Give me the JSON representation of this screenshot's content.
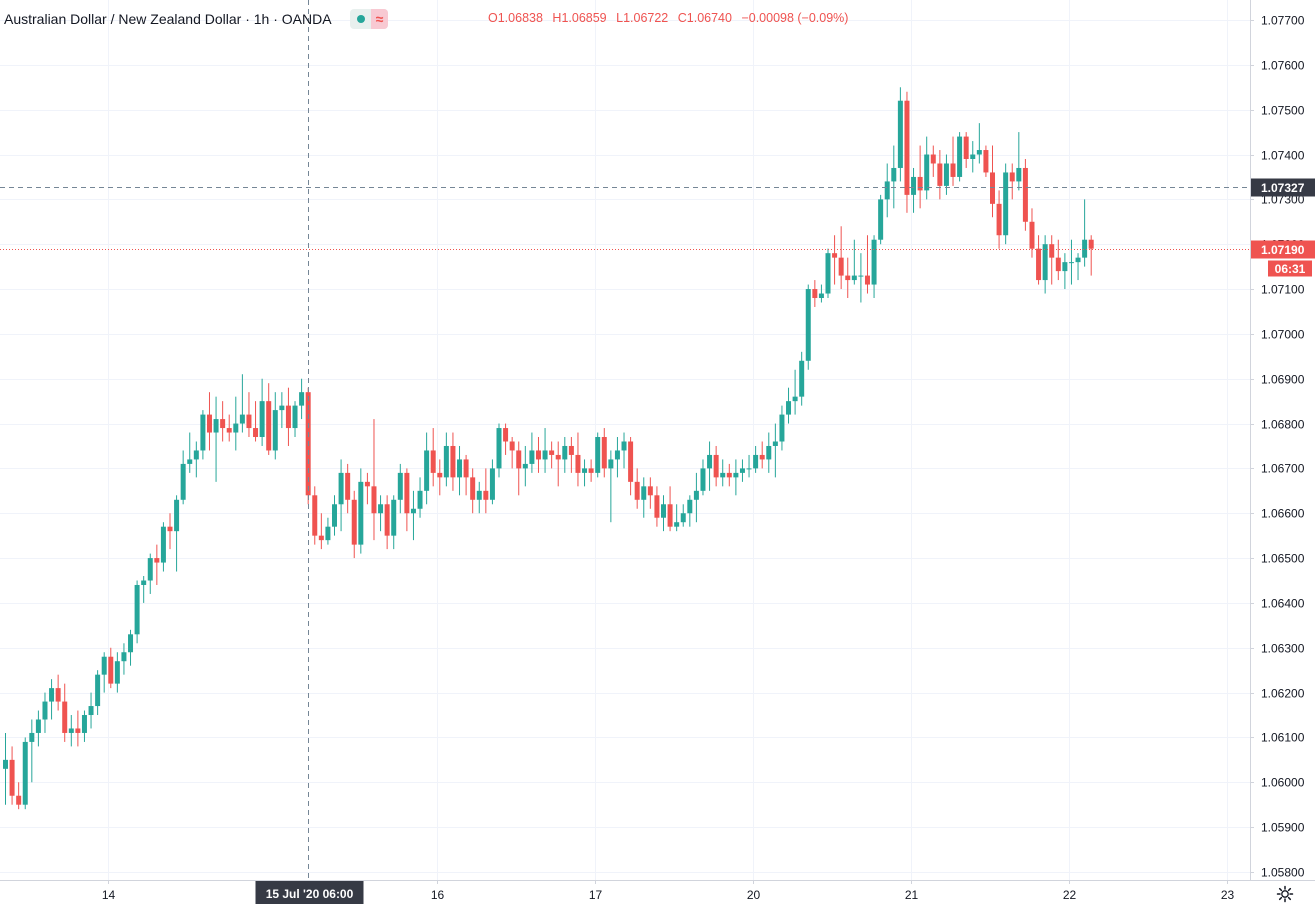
{
  "header": {
    "symbol_title": "Australian Dollar / New Zealand Dollar · 1h · OANDA",
    "ohlc": {
      "open_label": "O",
      "open": "1.06838",
      "high_label": "H",
      "high": "1.06859",
      "low_label": "L",
      "low": "1.06722",
      "close_label": "C",
      "close": "1.06740",
      "change": "−0.00098 (−0.09%)"
    }
  },
  "colors": {
    "up": "#26a69a",
    "down": "#ef5350",
    "grid": "#f0f3fa",
    "text": "#131722"
  },
  "chart_data": {
    "type": "candlestick",
    "ylim": [
      1.0578,
      1.0775
    ],
    "y_ticks": [
      "1.05800",
      "1.05900",
      "1.06000",
      "1.06100",
      "1.06200",
      "1.06300",
      "1.06400",
      "1.06500",
      "1.06600",
      "1.06700",
      "1.06800",
      "1.06900",
      "1.07000",
      "1.07100",
      "1.07200",
      "1.07300",
      "1.07400",
      "1.07500",
      "1.07600",
      "1.07700"
    ],
    "x_ticks": [
      {
        "label": "14",
        "bar": 16
      },
      {
        "label": "16",
        "bar": 66
      },
      {
        "label": "17",
        "bar": 90
      },
      {
        "label": "20",
        "bar": 114
      },
      {
        "label": "21",
        "bar": 138
      },
      {
        "label": "22",
        "bar": 162
      },
      {
        "label": "23",
        "bar": 186
      }
    ],
    "crosshair": {
      "bar": 46,
      "price": 1.07327,
      "x_label": "15 Jul '20   06:00",
      "y_label": "1.07327"
    },
    "last_price": {
      "price": 1.0719,
      "label": "1.07190",
      "countdown": "06:31"
    },
    "candles": [
      [
        1.0603,
        1.0611,
        1.0595,
        1.0605
      ],
      [
        1.0605,
        1.0608,
        1.0595,
        1.0597
      ],
      [
        1.0597,
        1.06,
        1.0594,
        1.0595
      ],
      [
        1.0595,
        1.061,
        1.0594,
        1.0609
      ],
      [
        1.0609,
        1.0614,
        1.06,
        1.0611
      ],
      [
        1.0611,
        1.0616,
        1.0608,
        1.0614
      ],
      [
        1.0614,
        1.062,
        1.0611,
        1.0618
      ],
      [
        1.0618,
        1.0623,
        1.0614,
        1.0621
      ],
      [
        1.0621,
        1.0624,
        1.0616,
        1.0618
      ],
      [
        1.0618,
        1.0622,
        1.0609,
        1.0611
      ],
      [
        1.0611,
        1.0615,
        1.0608,
        1.0612
      ],
      [
        1.0612,
        1.0616,
        1.0608,
        1.0611
      ],
      [
        1.0611,
        1.0616,
        1.0609,
        1.0615
      ],
      [
        1.0615,
        1.062,
        1.0612,
        1.0617
      ],
      [
        1.0617,
        1.0625,
        1.0615,
        1.0624
      ],
      [
        1.0624,
        1.0629,
        1.062,
        1.0628
      ],
      [
        1.0628,
        1.063,
        1.0621,
        1.0622
      ],
      [
        1.0622,
        1.0629,
        1.062,
        1.0627
      ],
      [
        1.0627,
        1.0631,
        1.0624,
        1.0629
      ],
      [
        1.0629,
        1.0634,
        1.0626,
        1.0633
      ],
      [
        1.0633,
        1.0645,
        1.0631,
        1.0644
      ],
      [
        1.0644,
        1.0646,
        1.064,
        1.0645
      ],
      [
        1.0645,
        1.0651,
        1.0642,
        1.065
      ],
      [
        1.065,
        1.0653,
        1.0644,
        1.0649
      ],
      [
        1.0649,
        1.0658,
        1.0647,
        1.0657
      ],
      [
        1.0657,
        1.066,
        1.0652,
        1.0656
      ],
      [
        1.0656,
        1.0664,
        1.0647,
        1.0663
      ],
      [
        1.0663,
        1.0674,
        1.0662,
        1.0671
      ],
      [
        1.0671,
        1.0678,
        1.0669,
        1.0672
      ],
      [
        1.0672,
        1.0676,
        1.0668,
        1.0674
      ],
      [
        1.0674,
        1.0683,
        1.0672,
        1.0682
      ],
      [
        1.0682,
        1.0687,
        1.0674,
        1.0678
      ],
      [
        1.0678,
        1.0686,
        1.0667,
        1.0681
      ],
      [
        1.0681,
        1.0685,
        1.0676,
        1.0679
      ],
      [
        1.0679,
        1.0682,
        1.0676,
        1.0678
      ],
      [
        1.0678,
        1.0686,
        1.0674,
        1.068
      ],
      [
        1.068,
        1.0691,
        1.0678,
        1.0682
      ],
      [
        1.0682,
        1.0687,
        1.0677,
        1.0679
      ],
      [
        1.0679,
        1.0685,
        1.0676,
        1.0677
      ],
      [
        1.0677,
        1.069,
        1.0675,
        1.0685
      ],
      [
        1.0685,
        1.0689,
        1.0673,
        1.0674
      ],
      [
        1.0674,
        1.0687,
        1.0672,
        1.0683
      ],
      [
        1.0683,
        1.0687,
        1.0679,
        1.0684
      ],
      [
        1.0684,
        1.0688,
        1.0675,
        1.0679
      ],
      [
        1.0679,
        1.0685,
        1.0677,
        1.0684
      ],
      [
        1.0684,
        1.069,
        1.0681,
        1.0687
      ],
      [
        1.0687,
        1.0688,
        1.0662,
        1.0664
      ],
      [
        1.0664,
        1.0666,
        1.0653,
        1.0655
      ],
      [
        1.0655,
        1.066,
        1.0652,
        1.0654
      ],
      [
        1.0654,
        1.0659,
        1.0653,
        1.0657
      ],
      [
        1.0657,
        1.0664,
        1.0655,
        1.0662
      ],
      [
        1.0662,
        1.0672,
        1.0656,
        1.0669
      ],
      [
        1.0669,
        1.0671,
        1.066,
        1.0663
      ],
      [
        1.0663,
        1.0665,
        1.065,
        1.0653
      ],
      [
        1.0653,
        1.067,
        1.0651,
        1.0667
      ],
      [
        1.0667,
        1.0669,
        1.0662,
        1.0666
      ],
      [
        1.0666,
        1.0681,
        1.0654,
        1.066
      ],
      [
        1.066,
        1.0664,
        1.0656,
        1.0662
      ],
      [
        1.0662,
        1.0664,
        1.0652,
        1.0655
      ],
      [
        1.0655,
        1.0664,
        1.0652,
        1.0663
      ],
      [
        1.0663,
        1.0671,
        1.066,
        1.0669
      ],
      [
        1.0669,
        1.067,
        1.0656,
        1.066
      ],
      [
        1.066,
        1.0665,
        1.0654,
        1.0661
      ],
      [
        1.0661,
        1.0668,
        1.0659,
        1.0665
      ],
      [
        1.0665,
        1.0678,
        1.0662,
        1.0674
      ],
      [
        1.0674,
        1.0679,
        1.0666,
        1.0669
      ],
      [
        1.0669,
        1.0672,
        1.0664,
        1.0668
      ],
      [
        1.0668,
        1.0678,
        1.0666,
        1.0675
      ],
      [
        1.0675,
        1.0678,
        1.0665,
        1.0668
      ],
      [
        1.0668,
        1.0675,
        1.0664,
        1.0672
      ],
      [
        1.0672,
        1.0673,
        1.0664,
        1.0668
      ],
      [
        1.0668,
        1.067,
        1.066,
        1.0663
      ],
      [
        1.0663,
        1.0667,
        1.066,
        1.0665
      ],
      [
        1.0665,
        1.067,
        1.066,
        1.0663
      ],
      [
        1.0663,
        1.0672,
        1.0662,
        1.067
      ],
      [
        1.067,
        1.068,
        1.0668,
        1.0679
      ],
      [
        1.0679,
        1.068,
        1.0673,
        1.0676
      ],
      [
        1.0676,
        1.0677,
        1.067,
        1.0674
      ],
      [
        1.0674,
        1.0676,
        1.0664,
        1.067
      ],
      [
        1.067,
        1.0675,
        1.0666,
        1.0671
      ],
      [
        1.0671,
        1.0678,
        1.0669,
        1.0674
      ],
      [
        1.0674,
        1.0677,
        1.0669,
        1.0672
      ],
      [
        1.0672,
        1.0679,
        1.0669,
        1.0674
      ],
      [
        1.0674,
        1.0676,
        1.067,
        1.0673
      ],
      [
        1.0673,
        1.0676,
        1.0666,
        1.0672
      ],
      [
        1.0672,
        1.0677,
        1.0669,
        1.0675
      ],
      [
        1.0675,
        1.0677,
        1.0669,
        1.0673
      ],
      [
        1.0673,
        1.0678,
        1.0666,
        1.0669
      ],
      [
        1.0669,
        1.0672,
        1.0666,
        1.067
      ],
      [
        1.067,
        1.0672,
        1.0667,
        1.0669
      ],
      [
        1.0669,
        1.0678,
        1.0668,
        1.0677
      ],
      [
        1.0677,
        1.0679,
        1.0668,
        1.067
      ],
      [
        1.067,
        1.0674,
        1.0658,
        1.0672
      ],
      [
        1.0672,
        1.0677,
        1.0668,
        1.0674
      ],
      [
        1.0674,
        1.0678,
        1.067,
        1.0676
      ],
      [
        1.0676,
        1.0677,
        1.0664,
        1.0667
      ],
      [
        1.0667,
        1.067,
        1.0661,
        1.0663
      ],
      [
        1.0663,
        1.0668,
        1.0659,
        1.0666
      ],
      [
        1.0666,
        1.0668,
        1.0661,
        1.0664
      ],
      [
        1.0664,
        1.0666,
        1.0657,
        1.0659
      ],
      [
        1.0659,
        1.0664,
        1.0656,
        1.0662
      ],
      [
        1.0662,
        1.0666,
        1.0656,
        1.0657
      ],
      [
        1.0657,
        1.0662,
        1.0656,
        1.0658
      ],
      [
        1.0658,
        1.0662,
        1.0657,
        1.066
      ],
      [
        1.066,
        1.0664,
        1.0657,
        1.0663
      ],
      [
        1.0663,
        1.0669,
        1.0658,
        1.0665
      ],
      [
        1.0665,
        1.0672,
        1.0664,
        1.067
      ],
      [
        1.067,
        1.0676,
        1.0665,
        1.0673
      ],
      [
        1.0673,
        1.0675,
        1.0666,
        1.0668
      ],
      [
        1.0668,
        1.0672,
        1.0666,
        1.0669
      ],
      [
        1.0669,
        1.0671,
        1.0666,
        1.0668
      ],
      [
        1.0668,
        1.0672,
        1.0664,
        1.0669
      ],
      [
        1.0669,
        1.0672,
        1.0667,
        1.067
      ],
      [
        1.067,
        1.0673,
        1.0668,
        1.067
      ],
      [
        1.067,
        1.0675,
        1.0669,
        1.0673
      ],
      [
        1.0673,
        1.0676,
        1.067,
        1.0672
      ],
      [
        1.0672,
        1.0678,
        1.0669,
        1.0675
      ],
      [
        1.0675,
        1.068,
        1.0668,
        1.0676
      ],
      [
        1.0676,
        1.0684,
        1.0674,
        1.0682
      ],
      [
        1.0682,
        1.0688,
        1.068,
        1.0685
      ],
      [
        1.0685,
        1.0692,
        1.0682,
        1.0686
      ],
      [
        1.0686,
        1.0696,
        1.0684,
        1.0694
      ],
      [
        1.0694,
        1.0711,
        1.0692,
        1.071
      ],
      [
        1.071,
        1.0712,
        1.0706,
        1.0708
      ],
      [
        1.0708,
        1.0711,
        1.0707,
        1.0709
      ],
      [
        1.0709,
        1.0719,
        1.0708,
        1.0718
      ],
      [
        1.0718,
        1.0722,
        1.0711,
        1.0717
      ],
      [
        1.0717,
        1.0724,
        1.071,
        1.0713
      ],
      [
        1.0713,
        1.0717,
        1.0708,
        1.0712
      ],
      [
        1.0712,
        1.0721,
        1.0711,
        1.0713
      ],
      [
        1.0713,
        1.0718,
        1.0707,
        1.0713
      ],
      [
        1.0713,
        1.0722,
        1.0709,
        1.0711
      ],
      [
        1.0711,
        1.0722,
        1.0708,
        1.0721
      ],
      [
        1.0721,
        1.0731,
        1.072,
        1.073
      ],
      [
        1.073,
        1.0738,
        1.0726,
        1.0734
      ],
      [
        1.0734,
        1.0742,
        1.0728,
        1.0737
      ],
      [
        1.0737,
        1.0755,
        1.0734,
        1.0752
      ],
      [
        1.0752,
        1.0754,
        1.0727,
        1.0731
      ],
      [
        1.0731,
        1.0737,
        1.0727,
        1.0735
      ],
      [
        1.0735,
        1.0742,
        1.0728,
        1.0732
      ],
      [
        1.0732,
        1.0744,
        1.073,
        1.074
      ],
      [
        1.074,
        1.0742,
        1.0735,
        1.0738
      ],
      [
        1.0738,
        1.0741,
        1.073,
        1.0733
      ],
      [
        1.0733,
        1.074,
        1.0731,
        1.0738
      ],
      [
        1.0738,
        1.0744,
        1.0733,
        1.0735
      ],
      [
        1.0735,
        1.0745,
        1.0734,
        1.0744
      ],
      [
        1.0744,
        1.0745,
        1.0737,
        1.0739
      ],
      [
        1.0739,
        1.0743,
        1.0736,
        1.074
      ],
      [
        1.074,
        1.0747,
        1.0738,
        1.0741
      ],
      [
        1.0741,
        1.0742,
        1.0735,
        1.0736
      ],
      [
        1.0736,
        1.0742,
        1.0726,
        1.0729
      ],
      [
        1.0729,
        1.0732,
        1.0719,
        1.0722
      ],
      [
        1.0722,
        1.0738,
        1.072,
        1.0736
      ],
      [
        1.0736,
        1.0738,
        1.073,
        1.0734
      ],
      [
        1.0734,
        1.0745,
        1.0732,
        1.0737
      ],
      [
        1.0737,
        1.0739,
        1.0723,
        1.0725
      ],
      [
        1.0725,
        1.0728,
        1.0717,
        1.0719
      ],
      [
        1.0719,
        1.0722,
        1.0711,
        1.0712
      ],
      [
        1.0712,
        1.0722,
        1.0709,
        1.072
      ],
      [
        1.072,
        1.0722,
        1.0711,
        1.0717
      ],
      [
        1.0717,
        1.0721,
        1.0712,
        1.0714
      ],
      [
        1.0714,
        1.0718,
        1.071,
        1.0716
      ],
      [
        1.0716,
        1.0721,
        1.0711,
        1.0716
      ],
      [
        1.0716,
        1.0718,
        1.0712,
        1.0717
      ],
      [
        1.0717,
        1.073,
        1.0715,
        1.0721
      ],
      [
        1.0721,
        1.0722,
        1.0713,
        1.0719
      ]
    ]
  },
  "footer": {
    "settings_icon": "gear-icon"
  }
}
